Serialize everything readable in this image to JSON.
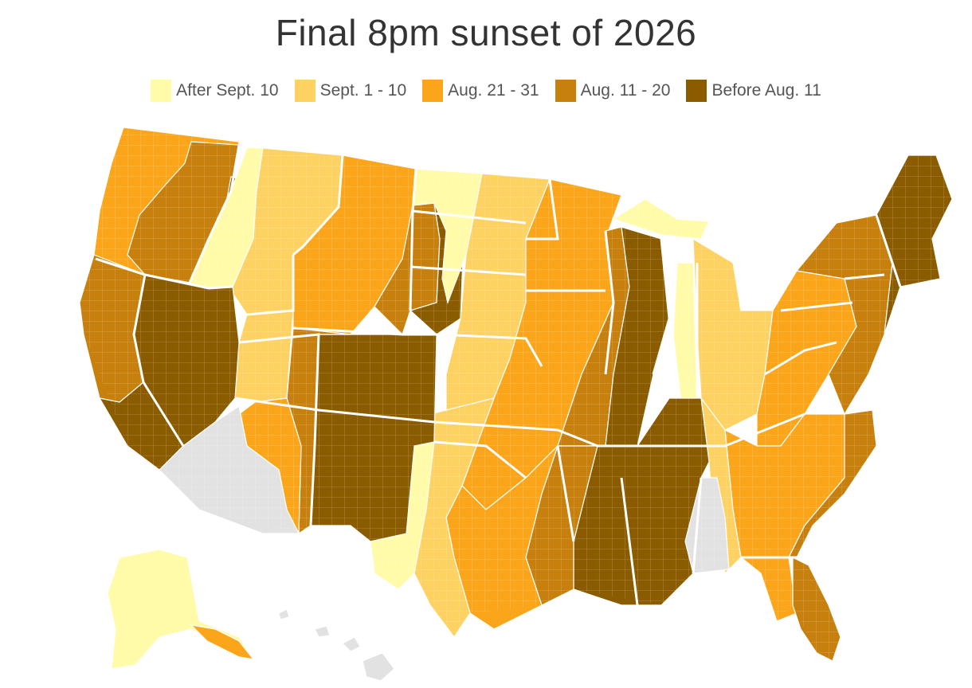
{
  "title": "Final 8pm sunset of 2026",
  "legend": [
    {
      "label": "After Sept. 10",
      "color": "#FFFBA8"
    },
    {
      "label": "Sept. 1 - 10",
      "color": "#FDD262"
    },
    {
      "label": "Aug. 21 - 31",
      "color": "#FBA51A"
    },
    {
      "label": "Aug. 11 - 20",
      "color": "#C7800D"
    },
    {
      "label": "Before Aug. 11",
      "color": "#8B5B00"
    }
  ],
  "no_data_color": "#E2E2E2"
}
